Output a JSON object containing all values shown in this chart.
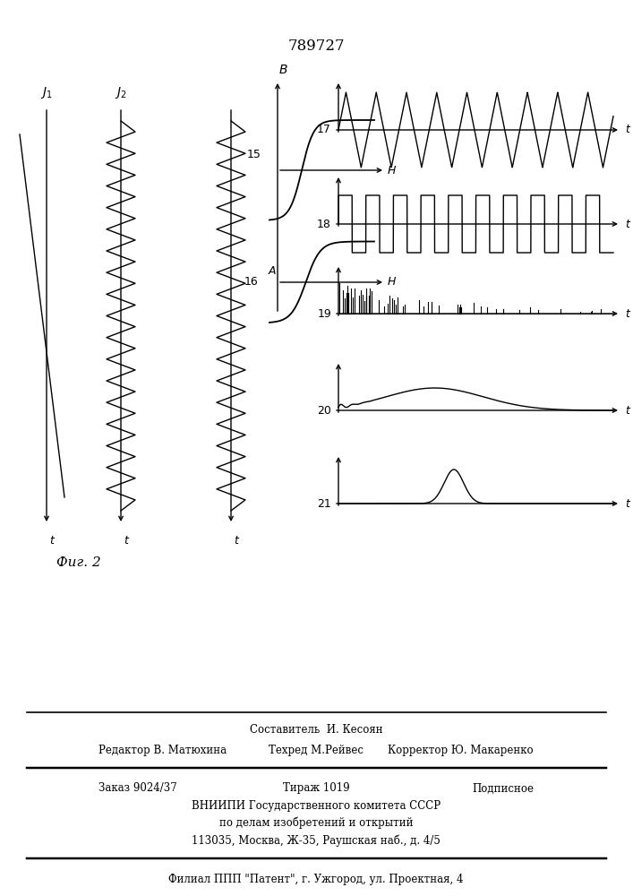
{
  "title": "789727",
  "fig_label": "Фиг. 2",
  "bg_color": "#ffffff",
  "line_color": "#000000",
  "lw": 1.0,
  "panel_labels": [
    "17",
    "18",
    "19",
    "20",
    "21"
  ],
  "footer": {
    "sostavitel": "Составитель  И. Кесоян",
    "redaktor": "Редактор В. Матюхина",
    "tehred": "Техред М.Рейвес",
    "korrektor": "Корректор Ю. Макаренко",
    "zakaz": "Заказ 9024/37",
    "tirazh": "Тираж 1019",
    "podpisnoe": "Подписное",
    "vnipi1": "ВНИИПИ Государственного комитета СССР",
    "vnipi2": "по делам изобретений и открытий",
    "address": "113035, Москва, Ж-35, Раушская наб., д. 4/5",
    "filial": "Филиал ППП \"Патент\", г. Ужгород, ул. Проектная, 4"
  }
}
